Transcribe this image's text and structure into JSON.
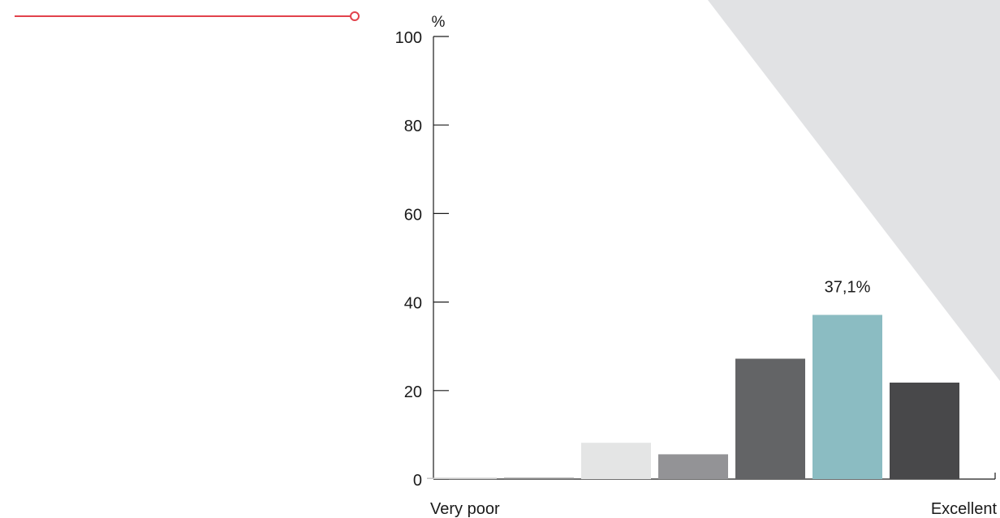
{
  "colors": {
    "accent_line": "#e2424c",
    "background_shape": "#e1e2e4",
    "axis": "#1a1a1a"
  },
  "chart_data": {
    "type": "bar",
    "title": "",
    "xlabel": "",
    "ylabel": "%",
    "ylim": [
      0,
      100
    ],
    "yticks": [
      "0",
      "20",
      "40",
      "60",
      "80",
      "100"
    ],
    "x_end_labels": {
      "left": "Very poor",
      "right": "Excellent"
    },
    "grid": false,
    "legend": "none",
    "series": [
      {
        "values": [
          0.3,
          0.3,
          8.2,
          5.6,
          27.2,
          37.1,
          21.8
        ],
        "colors": [
          "#c9c9c9",
          "#8c8c8c",
          "#e4e5e5",
          "#939396",
          "#636466",
          "#8bbcc2",
          "#48484a"
        ],
        "data_labels": [
          "",
          "",
          "",
          "",
          "",
          "37,1%",
          ""
        ]
      }
    ]
  }
}
